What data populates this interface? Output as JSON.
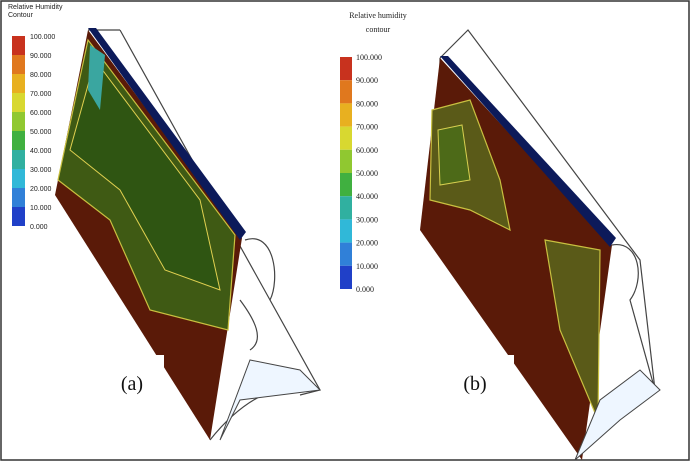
{
  "panels": [
    {
      "legend": {
        "title": [
          "Relative Humidity",
          "Contour"
        ],
        "labels": [
          "100.000",
          "90.000",
          "80.000",
          "70.000",
          "60.000",
          "50.000",
          "40.000",
          "30.000",
          "20.000",
          "10.000",
          "0.000"
        ]
      },
      "label": "(a)"
    },
    {
      "legend": {
        "title": [
          "Relative humidity",
          "contour"
        ],
        "labels": [
          "100.000",
          "90.000",
          "80.000",
          "70.000",
          "60.000",
          "50.000",
          "40.000",
          "30.000",
          "20.000",
          "10.000",
          "0.000"
        ]
      },
      "label": "(b)"
    }
  ]
}
